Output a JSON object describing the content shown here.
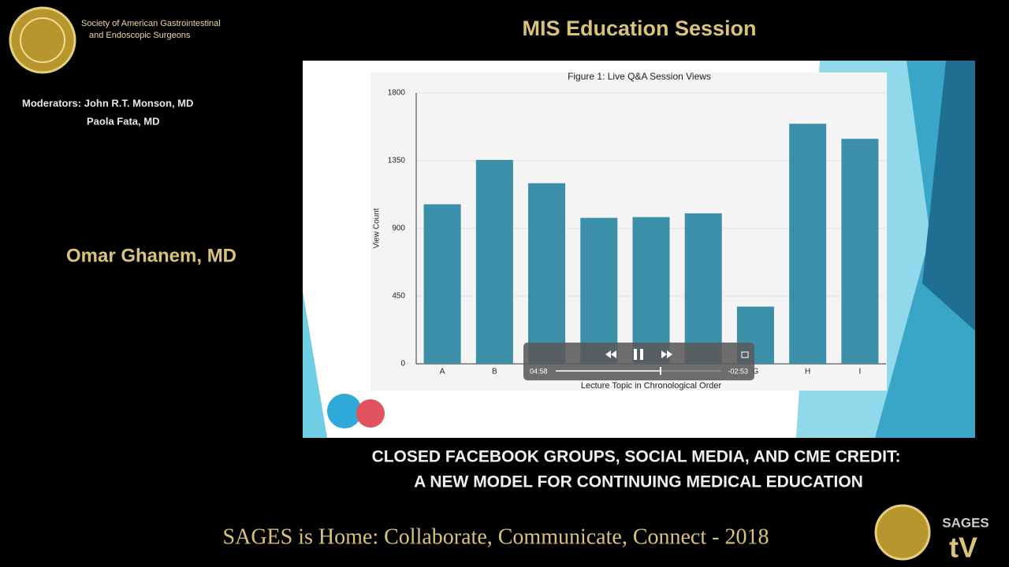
{
  "header": {
    "society": [
      "Society of American Gastrointestinal",
      "and Endoscopic Surgeons"
    ],
    "title": "MIS Education Session"
  },
  "moderators": [
    "Moderators: John R.T. Monson, MD",
    "Paola Fata, MD"
  ],
  "speaker": "Omar Ghanem, MD",
  "chart_data": {
    "type": "bar",
    "title": "Figure 1: Live Q&A Session Views",
    "x_label": "Lecture Topic in Chronological Order",
    "y_label": "View Count",
    "categories": [
      "A",
      "B",
      null,
      null,
      null,
      null,
      "G",
      "H",
      "I"
    ],
    "values": [
      1060,
      1355,
      1200,
      970,
      975,
      1000,
      380,
      1595,
      1495
    ],
    "color": "#3b8fa8",
    "ylim": [
      0,
      1800
    ],
    "yticks": [
      0,
      450,
      900,
      1350,
      1800
    ],
    "grid": true
  },
  "player": {
    "elapsed": "04:58",
    "remaining": "-02:53"
  },
  "caption": [
    "CLOSED FACEBOOK GROUPS, SOCIAL MEDIA, AND CME CREDIT:",
    "A NEW MODEL FOR CONTINUING MEDICAL EDUCATION"
  ],
  "footer": {
    "text": "SAGES is Home: Collaborate, Communicate, Connect - 2018",
    "logo": [
      "SAGES",
      "tV"
    ]
  }
}
